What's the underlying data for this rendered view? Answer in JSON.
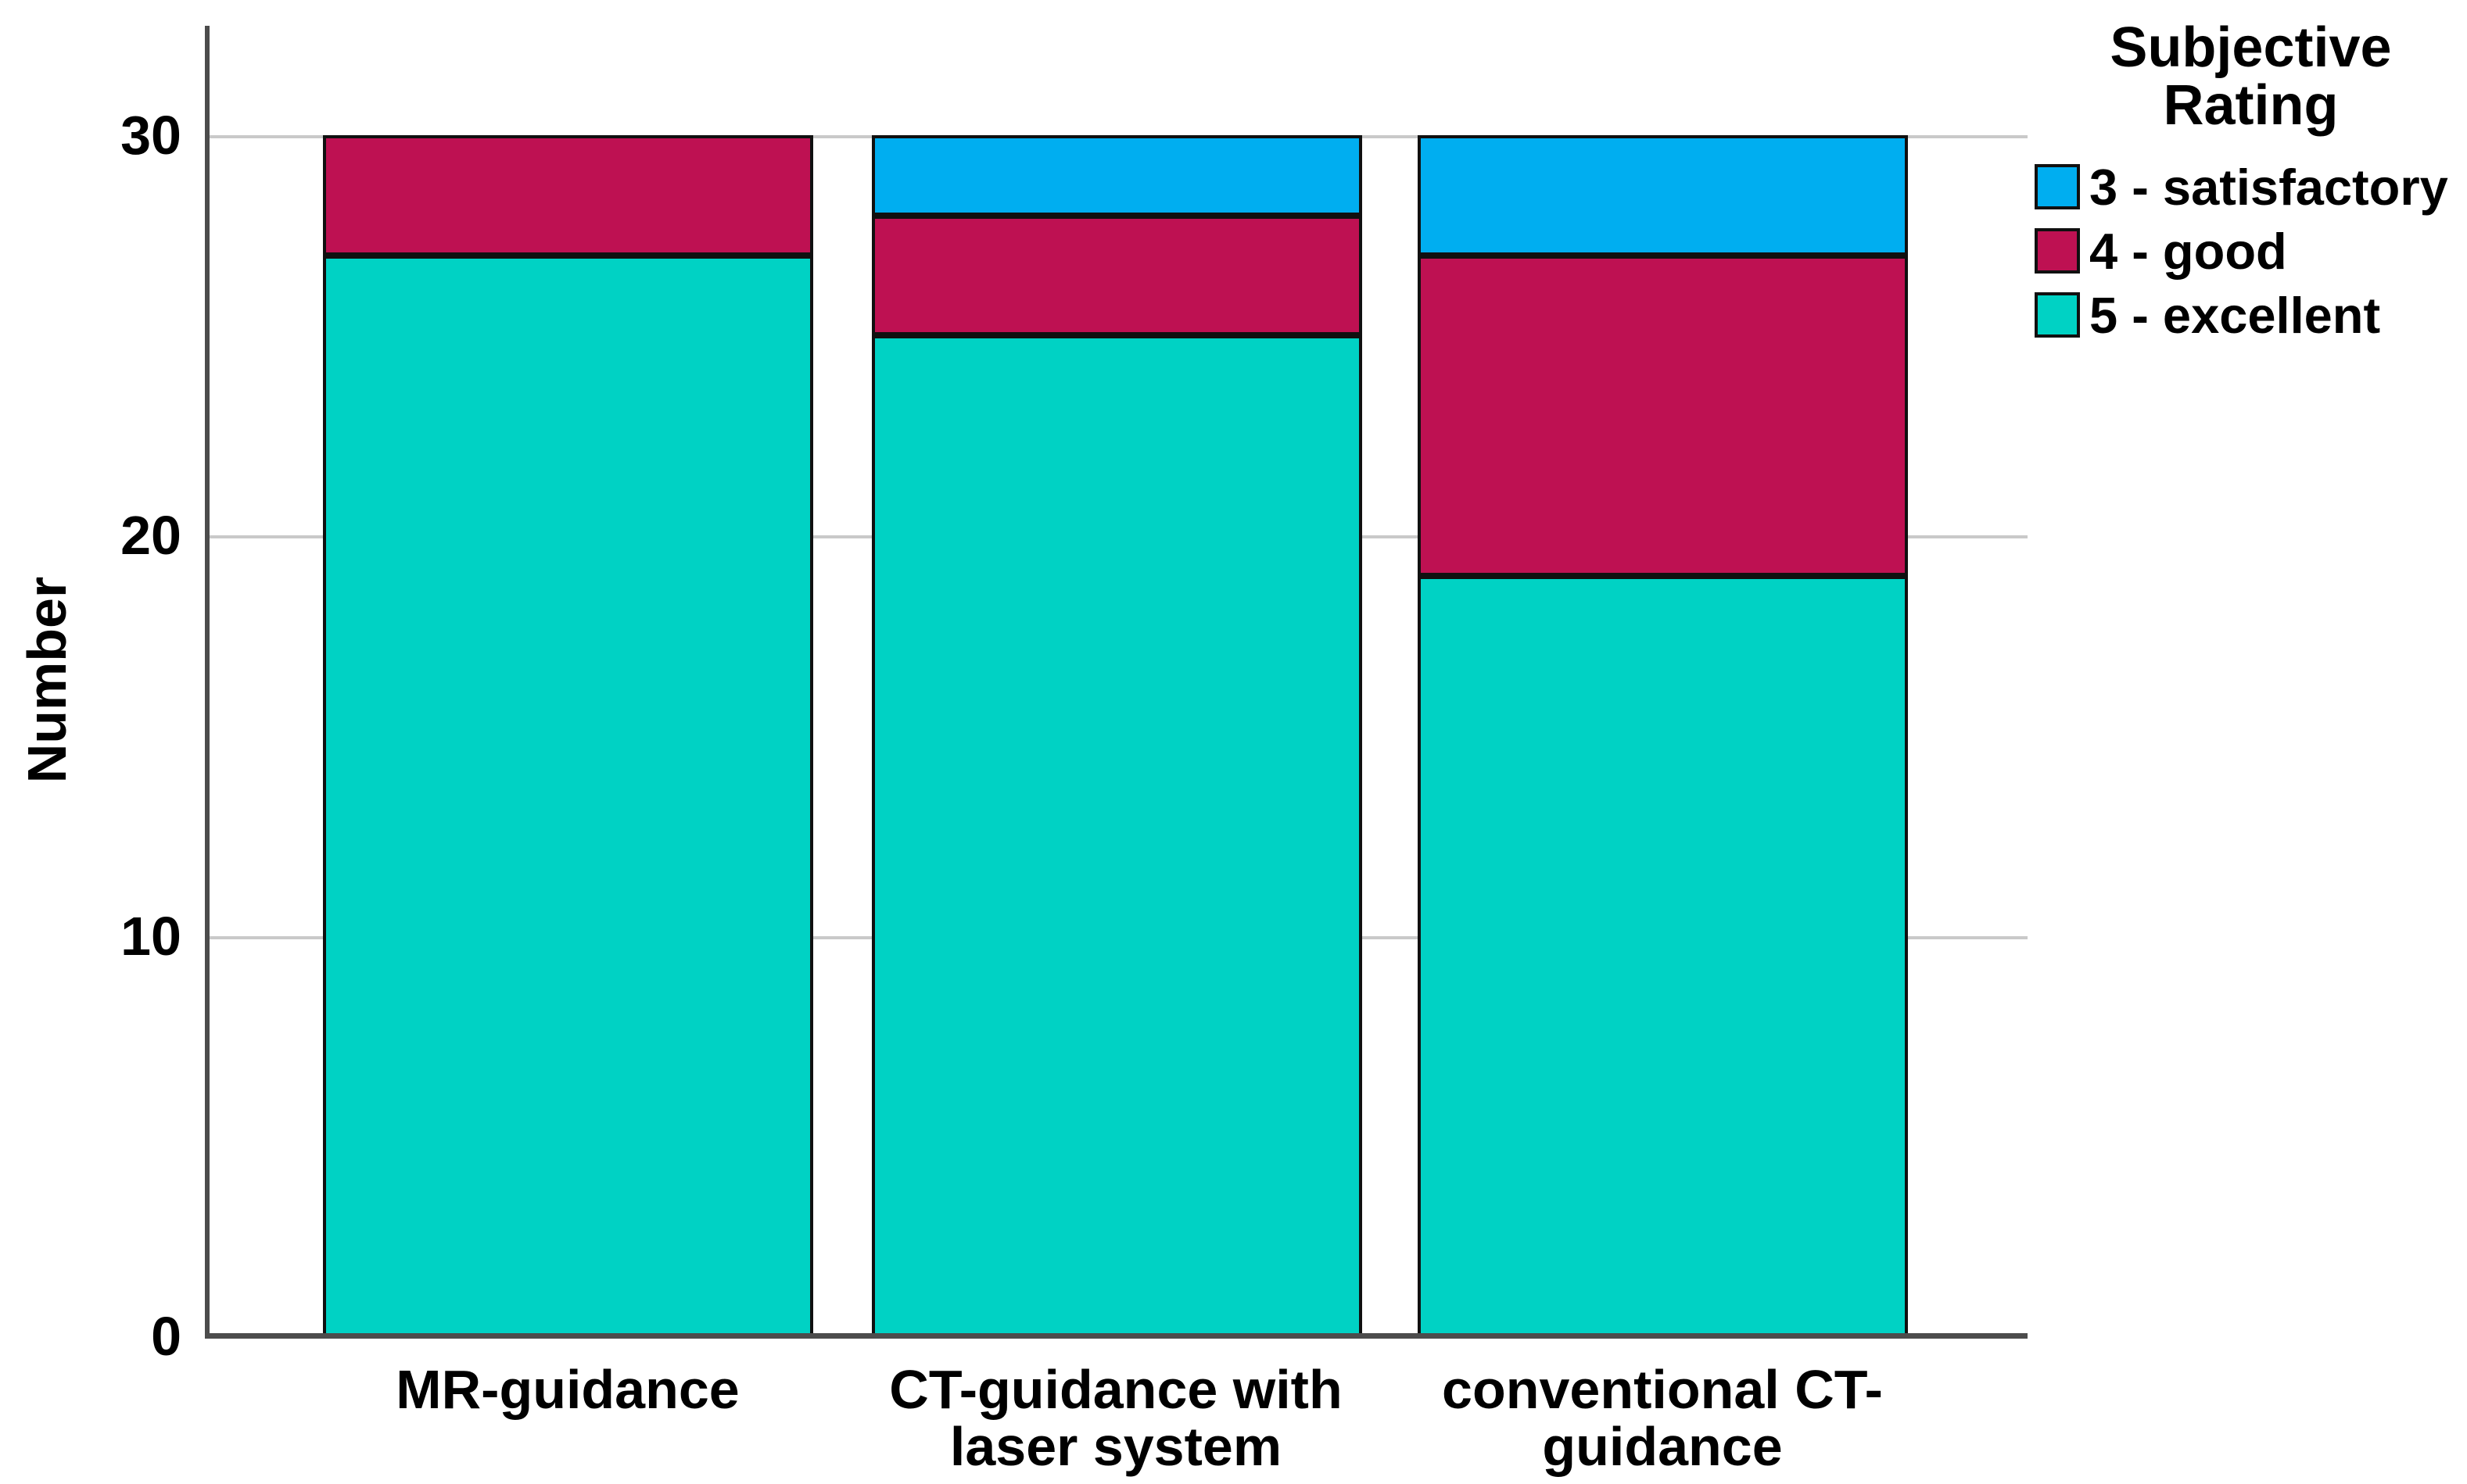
{
  "chart_data": {
    "type": "bar",
    "subtype": "stacked",
    "title": "",
    "ylabel": "Number",
    "xlabel": "",
    "yticks": [
      0,
      10,
      20,
      30
    ],
    "ylim": [
      0,
      32.7
    ],
    "grid": "horizontal",
    "legend_title_lines": [
      "Subjective",
      "Rating"
    ],
    "legend_position": "top-right",
    "categories": [
      [
        "MR-guidance",
        ""
      ],
      [
        "CT-guidance with",
        "laser system"
      ],
      [
        "conventional CT-",
        "guidance"
      ]
    ],
    "series": [
      {
        "name": "3 - satisfactory",
        "color": "#00AEF0",
        "values": [
          0,
          2,
          3
        ]
      },
      {
        "name": "4 - good",
        "color": "#BE1152",
        "values": [
          3,
          3,
          8
        ]
      },
      {
        "name": "5 - excellent",
        "color": "#00D2C4",
        "values": [
          27,
          25,
          19
        ]
      }
    ],
    "totals": [
      30,
      30,
      30
    ]
  },
  "colors": {
    "axis": "#4c4c4c",
    "gridline": "#c9c9c9",
    "segment_border": "#101010",
    "background": "#ffffff",
    "text": "#000000"
  }
}
